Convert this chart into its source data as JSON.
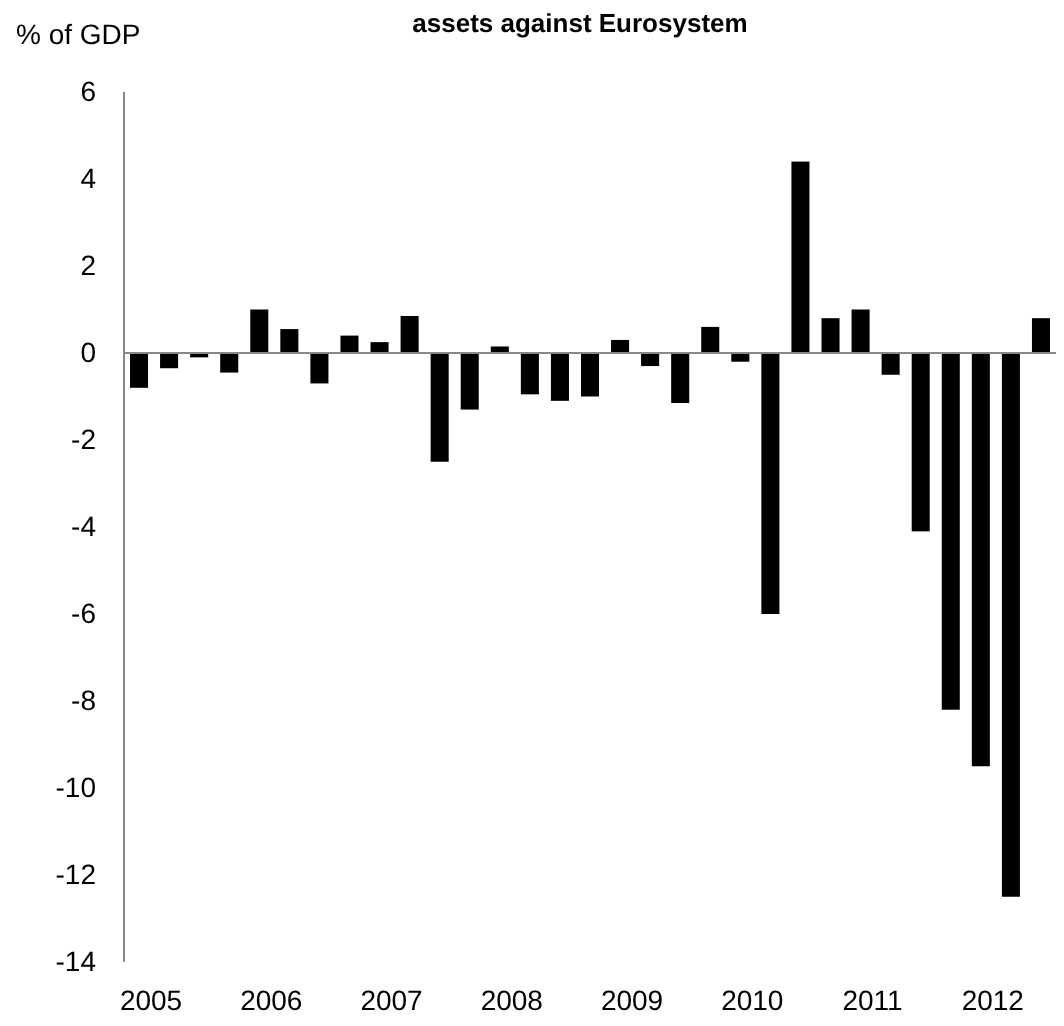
{
  "chart_data": {
    "type": "bar",
    "title": "assets against Eurosystem",
    "ylabel": "% of GDP",
    "categories": [
      "2005",
      null,
      null,
      null,
      "2006",
      null,
      null,
      null,
      "2007",
      null,
      null,
      null,
      "2008",
      null,
      null,
      null,
      "2009",
      null,
      null,
      null,
      "2010",
      null,
      null,
      null,
      "2011",
      null,
      null,
      null,
      "2012",
      null,
      null
    ],
    "values": [
      -0.8,
      -0.35,
      -0.1,
      -0.45,
      1.0,
      0.55,
      -0.7,
      0.4,
      0.25,
      0.85,
      -2.5,
      -1.3,
      0.15,
      -0.95,
      -1.1,
      -1.0,
      0.3,
      -0.3,
      -1.15,
      0.6,
      -0.2,
      -6.0,
      4.4,
      0.8,
      1.0,
      -0.5,
      -4.1,
      -8.2,
      -9.5,
      -12.5,
      0.8
    ],
    "color": "#000000",
    "ylim": [
      -14,
      6
    ],
    "yticks": [
      -14,
      -12,
      -10,
      -8,
      -6,
      -4,
      -2,
      0,
      2,
      4,
      6
    ]
  }
}
